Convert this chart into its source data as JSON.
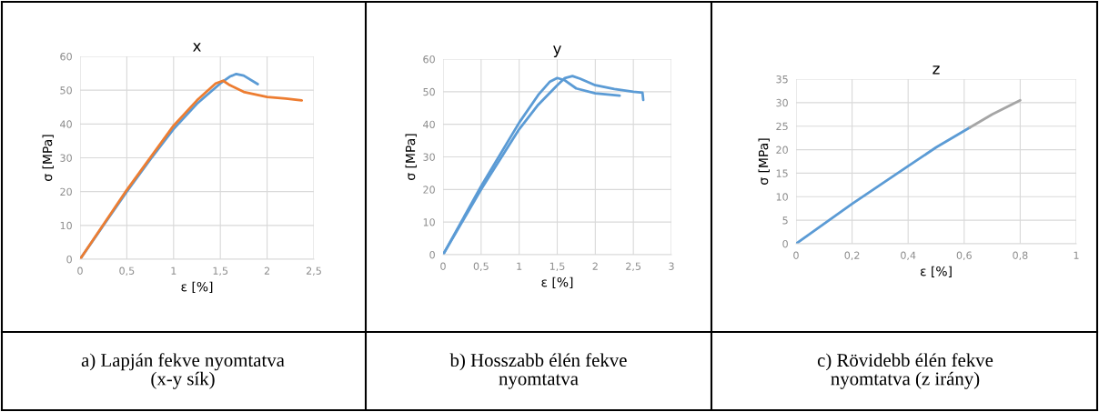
{
  "chart_data": [
    {
      "type": "line",
      "title": "x",
      "xlabel": "ε [%]",
      "ylabel": "σ [MPa]",
      "xlim": [
        0,
        2.5
      ],
      "xticks": [
        0,
        {
          "value": 0.5,
          "label": "0,5"
        },
        1,
        {
          "value": 1.5,
          "label": "1,5"
        },
        2,
        {
          "value": 2.5,
          "label": "2,5"
        }
      ],
      "ylim": [
        0,
        60
      ],
      "yticks": [
        0,
        10,
        20,
        30,
        40,
        50,
        60
      ],
      "grid": true,
      "series": [
        {
          "color": "#5b9bd5",
          "x": [
            0,
            0.25,
            0.5,
            0.75,
            1,
            1.25,
            1.5,
            1.6,
            1.67,
            1.75,
            1.9
          ],
          "values": [
            0,
            10,
            20,
            29.5,
            38.5,
            46,
            52,
            54,
            54.8,
            54.3,
            51.8
          ]
        },
        {
          "color": "#ed7d31",
          "x": [
            0,
            0.5,
            1,
            1.25,
            1.45,
            1.53,
            1.6,
            1.75,
            2,
            2.2,
            2.37
          ],
          "values": [
            0,
            20.5,
            39.5,
            47,
            52,
            52.8,
            51.5,
            49.5,
            48,
            47.5,
            47
          ]
        }
      ],
      "annotations": [
        "a) Lapján fekve nyomtatva\n(x-y sík)"
      ]
    },
    {
      "type": "line",
      "title": "y",
      "xlabel": "ε [%]",
      "ylabel": "σ [MPa]",
      "xlim": [
        0,
        3
      ],
      "xticks": [
        0,
        {
          "value": 0.5,
          "label": "0,5"
        },
        1,
        {
          "value": 1.5,
          "label": "1,5"
        },
        2,
        {
          "value": 2.5,
          "label": "2,5"
        },
        3
      ],
      "ylim": [
        0,
        60
      ],
      "yticks": [
        0,
        10,
        20,
        30,
        40,
        50,
        60
      ],
      "grid": true,
      "series": [
        {
          "color": "#5b9bd5",
          "x": [
            0,
            0.5,
            1,
            1.25,
            1.4,
            1.5,
            1.6,
            1.75,
            2,
            2.32
          ],
          "values": [
            0,
            21,
            40.5,
            49,
            53,
            54.2,
            53.5,
            51,
            49.5,
            48.8
          ]
        },
        {
          "color": "#5b9bd5",
          "x": [
            0,
            0.5,
            1,
            1.25,
            1.5,
            1.6,
            1.7,
            1.8,
            2,
            2.25,
            2.5,
            2.62,
            2.63
          ],
          "values": [
            0,
            20,
            38.5,
            46,
            52,
            54.2,
            54.8,
            54,
            52,
            50.8,
            50,
            49.7,
            47.5
          ]
        }
      ],
      "annotations": [
        "b) Hosszabb élén fekve\nnyomtatva"
      ]
    },
    {
      "type": "line",
      "title": "z",
      "xlabel": "ε [%]",
      "ylabel": "σ [MPa]",
      "xlim": [
        0,
        1
      ],
      "xticks": [
        0,
        {
          "value": 0.2,
          "label": "0,2"
        },
        {
          "value": 0.4,
          "label": "0,4"
        },
        {
          "value": 0.6,
          "label": "0,6"
        },
        {
          "value": 0.8,
          "label": "0,8"
        },
        1
      ],
      "ylim": [
        0,
        35
      ],
      "yticks": [
        0,
        5,
        10,
        15,
        20,
        25,
        30,
        35
      ],
      "grid": true,
      "series": [
        {
          "color": "#5b9bd5",
          "x": [
            0,
            0.2,
            0.4,
            0.5,
            0.62
          ],
          "values": [
            0,
            8.5,
            16.5,
            20.5,
            24.7
          ]
        },
        {
          "color": "#a5a5a5",
          "x": [
            0.62,
            0.7,
            0.8
          ],
          "values": [
            24.7,
            27.5,
            30.5
          ]
        }
      ],
      "annotations": [
        "c) Rövidebb élén fekve\nnyomtatva (z irány)"
      ]
    }
  ]
}
